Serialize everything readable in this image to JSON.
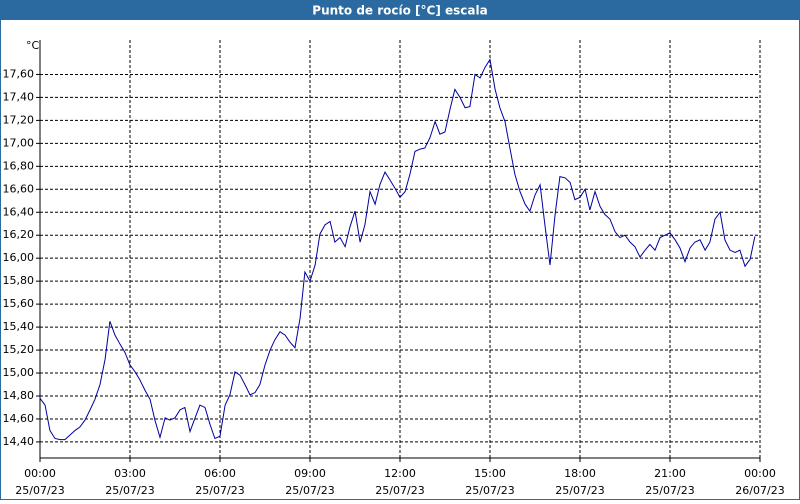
{
  "chart_data": {
    "type": "line",
    "title": "Punto de rocío [°C] escala",
    "y_unit": "°C",
    "xlim": [
      0,
      24
    ],
    "ylim": [
      14.26,
      17.9
    ],
    "xticks": [
      {
        "value": 0,
        "label": "00:00\n25/07/23"
      },
      {
        "value": 3,
        "label": "03:00\n25/07/23"
      },
      {
        "value": 6,
        "label": "06:00\n25/07/23"
      },
      {
        "value": 9,
        "label": "09:00\n25/07/23"
      },
      {
        "value": 12,
        "label": "12:00\n25/07/23"
      },
      {
        "value": 15,
        "label": "15:00\n25/07/23"
      },
      {
        "value": 18,
        "label": "18:00\n25/07/23"
      },
      {
        "value": 21,
        "label": "21:00\n25/07/23"
      },
      {
        "value": 24,
        "label": "00:00\n26/07/23"
      }
    ],
    "yticks": [
      {
        "value": 14.4,
        "label": "14,40"
      },
      {
        "value": 14.6,
        "label": "14,60"
      },
      {
        "value": 14.8,
        "label": "14,80"
      },
      {
        "value": 15.0,
        "label": "15,00"
      },
      {
        "value": 15.2,
        "label": "15,20"
      },
      {
        "value": 15.4,
        "label": "15,40"
      },
      {
        "value": 15.6,
        "label": "15,60"
      },
      {
        "value": 15.8,
        "label": "15,80"
      },
      {
        "value": 16.0,
        "label": "16,00"
      },
      {
        "value": 16.2,
        "label": "16,20"
      },
      {
        "value": 16.4,
        "label": "16,40"
      },
      {
        "value": 16.6,
        "label": "16,60"
      },
      {
        "value": 16.8,
        "label": "16,80"
      },
      {
        "value": 17.0,
        "label": "17,00"
      },
      {
        "value": 17.2,
        "label": "17,20"
      },
      {
        "value": 17.4,
        "label": "17,40"
      },
      {
        "value": 17.6,
        "label": "17,60"
      }
    ],
    "grid": true,
    "series": [
      {
        "color": "#0000a0",
        "x": [
          0,
          0.17,
          0.33,
          0.5,
          0.67,
          0.83,
          1,
          1.17,
          1.33,
          1.5,
          1.67,
          1.83,
          2,
          2.17,
          2.33,
          2.5,
          2.67,
          2.83,
          3,
          3.17,
          3.33,
          3.5,
          3.67,
          3.83,
          4,
          4.17,
          4.33,
          4.5,
          4.67,
          4.83,
          5,
          5.17,
          5.33,
          5.5,
          5.67,
          5.83,
          6,
          6.17,
          6.33,
          6.5,
          6.67,
          6.83,
          7,
          7.17,
          7.33,
          7.5,
          7.67,
          7.83,
          8,
          8.17,
          8.33,
          8.5,
          8.67,
          8.83,
          9,
          9.17,
          9.33,
          9.5,
          9.67,
          9.83,
          10,
          10.17,
          10.33,
          10.5,
          10.67,
          10.83,
          11,
          11.17,
          11.33,
          11.5,
          11.67,
          11.83,
          12,
          12.17,
          12.33,
          12.5,
          12.67,
          12.83,
          13,
          13.17,
          13.33,
          13.5,
          13.67,
          13.83,
          14,
          14.17,
          14.33,
          14.5,
          14.67,
          14.83,
          15,
          15.17,
          15.33,
          15.5,
          15.67,
          15.83,
          16,
          16.17,
          16.33,
          16.5,
          16.67,
          16.83,
          17,
          17.17,
          17.33,
          17.5,
          17.67,
          17.83,
          18,
          18.17,
          18.33,
          18.5,
          18.67,
          18.83,
          19,
          19.17,
          19.33,
          19.5,
          19.67,
          19.83,
          20,
          20.17,
          20.33,
          20.5,
          20.67,
          20.83,
          21,
          21.17,
          21.33,
          21.5,
          21.67,
          21.83,
          22,
          22.17,
          22.33,
          22.5,
          22.67,
          22.83,
          23,
          23.17,
          23.33,
          23.5,
          23.67,
          23.83
        ],
        "values": [
          14.78,
          14.72,
          14.5,
          14.43,
          14.42,
          14.42,
          14.46,
          14.5,
          14.53,
          14.59,
          14.68,
          14.77,
          14.9,
          15.12,
          15.45,
          15.33,
          15.25,
          15.18,
          15.07,
          15.01,
          14.94,
          14.85,
          14.77,
          14.59,
          14.44,
          14.61,
          14.59,
          14.61,
          14.68,
          14.7,
          14.49,
          14.61,
          14.72,
          14.7,
          14.55,
          14.43,
          14.45,
          14.72,
          14.81,
          15.01,
          14.98,
          14.9,
          14.81,
          14.83,
          14.9,
          15.07,
          15.2,
          15.29,
          15.36,
          15.33,
          15.27,
          15.22,
          15.48,
          15.88,
          15.8,
          15.94,
          16.21,
          16.29,
          16.32,
          16.14,
          16.18,
          16.1,
          16.27,
          16.41,
          16.14,
          16.29,
          16.58,
          16.47,
          16.64,
          16.75,
          16.68,
          16.61,
          16.53,
          16.58,
          16.73,
          16.93,
          16.95,
          16.96,
          17.05,
          17.19,
          17.08,
          17.1,
          17.3,
          17.47,
          17.4,
          17.31,
          17.32,
          17.6,
          17.57,
          17.66,
          17.73,
          17.47,
          17.31,
          17.19,
          16.95,
          16.73,
          16.58,
          16.47,
          16.41,
          16.55,
          16.64,
          16.29,
          15.94,
          16.38,
          16.71,
          16.7,
          16.66,
          16.51,
          16.53,
          16.6,
          16.42,
          16.58,
          16.45,
          16.38,
          16.34,
          16.23,
          16.18,
          16.2,
          16.14,
          16.1,
          16.01,
          16.07,
          16.12,
          16.07,
          16.18,
          16.2,
          16.22,
          16.16,
          16.09,
          15.97,
          16.09,
          16.14,
          16.16,
          16.07,
          16.14,
          16.34,
          16.4,
          16.16,
          16.07,
          16.05,
          16.07,
          15.93,
          15.99,
          16.19
        ]
      }
    ]
  }
}
